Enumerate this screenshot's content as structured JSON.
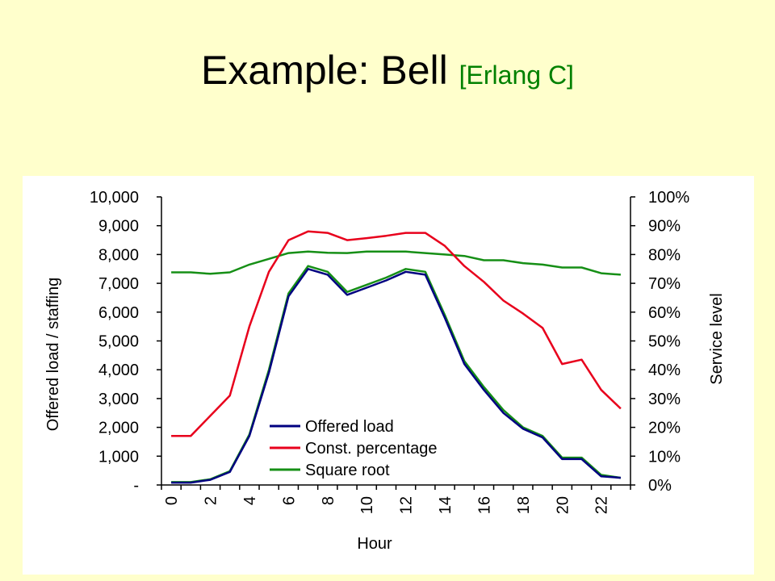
{
  "slide": {
    "title": "Example: Bell",
    "subtitle": "[Erlang C]"
  },
  "colors": {
    "background": "#FFFFCC",
    "panel": "#FFFFFF",
    "offered_load": "#000080",
    "const_percentage": "#E8001C",
    "square_root": "#168F16"
  },
  "chart_data": {
    "type": "line",
    "xlabel": "Hour",
    "ylabel": "Offered load / staffing",
    "y2label": "Service level",
    "x": [
      0,
      1,
      2,
      3,
      4,
      5,
      6,
      7,
      8,
      9,
      10,
      11,
      12,
      13,
      14,
      15,
      16,
      17,
      18,
      19,
      20,
      21,
      22,
      23
    ],
    "x_ticks": [
      "0",
      "2",
      "4",
      "6",
      "8",
      "10",
      "12",
      "14",
      "16",
      "18",
      "20",
      "22"
    ],
    "ylim": [
      0,
      10000
    ],
    "y_ticks": [
      "-",
      "1,000",
      "2,000",
      "3,000",
      "4,000",
      "5,000",
      "6,000",
      "7,000",
      "8,000",
      "9,000",
      "10,000"
    ],
    "y2lim": [
      0,
      100
    ],
    "y2_ticks": [
      "0%",
      "10%",
      "20%",
      "30%",
      "40%",
      "50%",
      "60%",
      "70%",
      "80%",
      "90%",
      "100%"
    ],
    "legend_position": "center-left, inside plot",
    "series": [
      {
        "name": "Offered load",
        "axis": "left",
        "values": [
          80,
          80,
          180,
          450,
          1700,
          3900,
          6550,
          7500,
          7300,
          6600,
          6850,
          7100,
          7400,
          7300,
          5800,
          4200,
          3300,
          2500,
          1950,
          1650,
          900,
          900,
          300,
          250
        ]
      },
      {
        "name": "Const. percentage",
        "axis": "right",
        "values": [
          17,
          17,
          24,
          31,
          55,
          74,
          85,
          88,
          87.5,
          85,
          85.7,
          86.5,
          87.5,
          87.5,
          83,
          76,
          70.5,
          64,
          59.5,
          54.5,
          42,
          43.5,
          33,
          26.5
        ]
      },
      {
        "name": "Square root",
        "axis": "left",
        "extra_axis": "right",
        "values": [
          100,
          100,
          200,
          480,
          1750,
          4000,
          6650,
          7600,
          7400,
          6700,
          6950,
          7200,
          7500,
          7400,
          5900,
          4300,
          3400,
          2600,
          2000,
          1700,
          950,
          950,
          350,
          250
        ],
        "service_level": [
          73.8,
          73.8,
          73.3,
          73.8,
          76.5,
          78.5,
          80.5,
          81,
          80.6,
          80.5,
          81,
          81,
          81,
          80.5,
          80,
          79.5,
          78,
          78,
          77,
          76.5,
          75.5,
          75.5,
          73.5,
          73
        ]
      }
    ]
  }
}
